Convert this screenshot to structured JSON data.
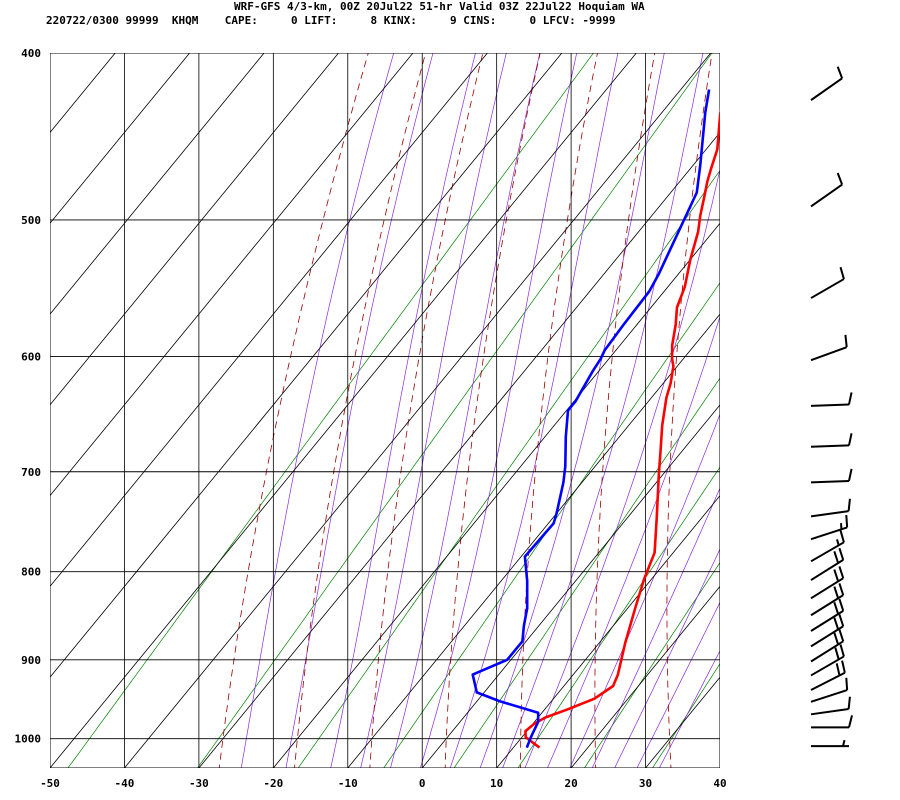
{
  "header": {
    "title": "WRF-GFS 4/3-km, 00Z 20Jul22 51-hr Valid 03Z 22Jul22 Hoquiam WA",
    "info": "220722/0300 99999  KHQM    CAPE:     0 LIFT:     8 KINX:     9 CINS:     0 LFCV: -9999"
  },
  "chart_data": {
    "type": "line",
    "title": "WRF-GFS 4/3-km, 00Z 20Jul22 51-hr Valid 03Z 22Jul22 Hoquiam WA",
    "xlabel": "",
    "ylabel": "",
    "xlim": [
      -50,
      40
    ],
    "ylim": [
      1040,
      400
    ],
    "y_scale": "log",
    "grid": true,
    "x_ticks": [
      "-50",
      "-40",
      "-30",
      "-20",
      "-10",
      "0",
      "10",
      "20",
      "30",
      "40"
    ],
    "y_ticks": [
      "400",
      "500",
      "600",
      "700",
      "800",
      "900",
      "1000"
    ],
    "series": [
      {
        "color": "#ff0000",
        "points": [
          [
            13.5,
            1012
          ],
          [
            10.5,
            998
          ],
          [
            9.8,
            990
          ],
          [
            10.2,
            980
          ],
          [
            11,
            972
          ],
          [
            13,
            962
          ],
          [
            15.5,
            948
          ],
          [
            16.6,
            932
          ],
          [
            16,
            918
          ],
          [
            13.5,
            880
          ],
          [
            11,
            840
          ],
          [
            9,
            808
          ],
          [
            7.5,
            780
          ],
          [
            4,
            745
          ],
          [
            -0.5,
            703
          ],
          [
            -3,
            680
          ],
          [
            -5.5,
            658
          ],
          [
            -8,
            634
          ],
          [
            -9,
            622
          ],
          [
            -10.5,
            608
          ],
          [
            -11.5,
            602
          ],
          [
            -13,
            591
          ],
          [
            -14.8,
            575
          ],
          [
            -16.5,
            562
          ],
          [
            -17.7,
            547
          ],
          [
            -20,
            527
          ],
          [
            -22,
            508
          ],
          [
            -23.5,
            497
          ],
          [
            -25,
            485
          ],
          [
            -26.3,
            475
          ],
          [
            -27.2,
            467
          ],
          [
            -28.5,
            455
          ],
          [
            -32,
            434
          ],
          [
            -34,
            420
          ]
        ]
      },
      {
        "color": "#0000ff",
        "points": [
          [
            11.8,
            1012
          ],
          [
            11.2,
            998
          ],
          [
            10.5,
            978
          ],
          [
            9.5,
            966
          ],
          [
            3,
            951
          ],
          [
            -1,
            940
          ],
          [
            -3.5,
            918
          ],
          [
            -0.5,
            900
          ],
          [
            -0.5,
            878
          ],
          [
            -2,
            860
          ],
          [
            -3.5,
            840
          ],
          [
            -6.5,
            810
          ],
          [
            -9.5,
            784
          ],
          [
            -9.3,
            750
          ],
          [
            -10,
            740
          ],
          [
            -12.5,
            710
          ],
          [
            -14,
            695
          ],
          [
            -17.2,
            668
          ],
          [
            -19.8,
            645
          ],
          [
            -19.8,
            637
          ],
          [
            -20.8,
            612
          ],
          [
            -21.1,
            602
          ],
          [
            -21.5,
            595
          ],
          [
            -21.8,
            575
          ],
          [
            -22,
            550
          ],
          [
            -22.6,
            538
          ],
          [
            -26.5,
            482
          ],
          [
            -29,
            465
          ],
          [
            -34.2,
            433
          ],
          [
            -36.2,
            420
          ]
        ]
      }
    ],
    "wind_barbs": [
      {
        "pressure": 1010,
        "dir": 270,
        "speed": 5
      },
      {
        "pressure": 985,
        "dir": 270,
        "speed": 10
      },
      {
        "pressure": 968,
        "dir": 262,
        "speed": 10
      },
      {
        "pressure": 952,
        "dir": 252,
        "speed": 10
      },
      {
        "pressure": 937,
        "dir": 243,
        "speed": 20
      },
      {
        "pressure": 919,
        "dir": 240,
        "speed": 20
      },
      {
        "pressure": 902,
        "dir": 238,
        "speed": 20
      },
      {
        "pressure": 884,
        "dir": 238,
        "speed": 20
      },
      {
        "pressure": 866,
        "dir": 238,
        "speed": 20
      },
      {
        "pressure": 848,
        "dir": 238,
        "speed": 20
      },
      {
        "pressure": 829,
        "dir": 238,
        "speed": 20
      },
      {
        "pressure": 809,
        "dir": 238,
        "speed": 20
      },
      {
        "pressure": 789,
        "dir": 240,
        "speed": 15
      },
      {
        "pressure": 766,
        "dir": 252,
        "speed": 15
      },
      {
        "pressure": 743,
        "dir": 262,
        "speed": 10
      },
      {
        "pressure": 710,
        "dir": 268,
        "speed": 10
      },
      {
        "pressure": 677,
        "dir": 268,
        "speed": 10
      },
      {
        "pressure": 641,
        "dir": 268,
        "speed": 10
      },
      {
        "pressure": 603,
        "dir": 250,
        "speed": 10
      },
      {
        "pressure": 555,
        "dir": 240,
        "speed": 10
      },
      {
        "pressure": 491,
        "dir": 235,
        "speed": 10
      },
      {
        "pressure": 426,
        "dir": 235,
        "speed": 10
      }
    ],
    "colors": {
      "temperature": "#ff0000",
      "dewpoint": "#0000ff",
      "isotherm_grid": "#000000",
      "dry_adiabat": "#990000",
      "moist_adiabat": "#8a2be2",
      "mixing_ratio": "#008000",
      "wind_barb": "#000000"
    }
  }
}
